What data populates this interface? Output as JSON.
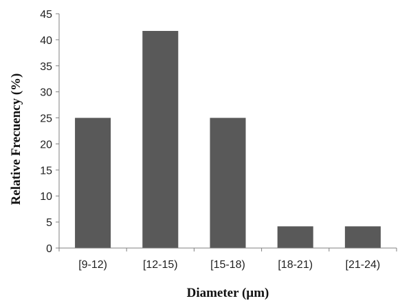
{
  "chart_data": {
    "type": "bar",
    "title": "",
    "xlabel": "Diameter (µm)",
    "ylabel": "Relative Frecuency (%)",
    "categories": [
      "[9-12)",
      "[12-15)",
      "[15-18)",
      "[18-21)",
      "[21-24)"
    ],
    "values": [
      25,
      41.7,
      25,
      4.17,
      4.17
    ],
    "ylim": [
      0,
      45
    ],
    "yticks": [
      0,
      5,
      10,
      15,
      20,
      25,
      30,
      35,
      40,
      45
    ],
    "ytick_labels": [
      "0",
      "5",
      "10",
      "15",
      "20",
      "25",
      "30",
      "35",
      "40",
      "45"
    ],
    "grid": false,
    "legend": "none",
    "colors": {
      "bar": "#595959",
      "axis": "#7f7f7f",
      "text": "#1f1f1f"
    }
  }
}
